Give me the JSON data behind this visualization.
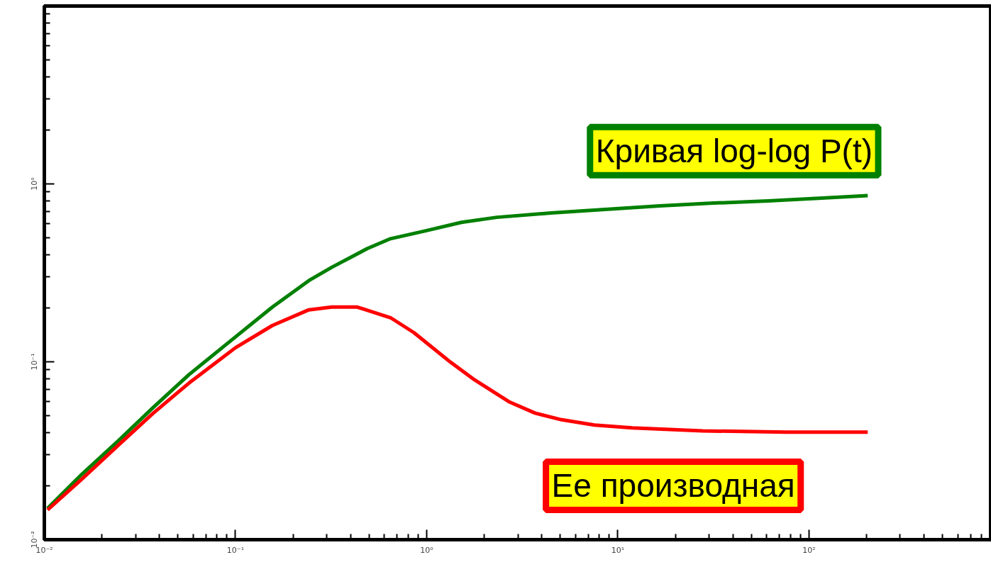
{
  "chart_data": {
    "type": "line",
    "log": "xy",
    "grid": false,
    "legend": false,
    "marker": "none",
    "line_style": "solid",
    "xlim": [
      0.01,
      900
    ],
    "ylim": [
      0.01,
      10
    ],
    "xticks": [
      {
        "value": 0.01,
        "label": "10⁻²"
      },
      {
        "value": 0.02,
        "label": null
      },
      {
        "value": 0.03,
        "label": null
      },
      {
        "value": 0.04,
        "label": null
      },
      {
        "value": 0.05,
        "label": null
      },
      {
        "value": 0.06,
        "label": null
      },
      {
        "value": 0.07,
        "label": null
      },
      {
        "value": 0.08,
        "label": null
      },
      {
        "value": 0.09,
        "label": null
      },
      {
        "value": 0.1,
        "label": "10⁻¹"
      },
      {
        "value": 0.2,
        "label": null
      },
      {
        "value": 0.3,
        "label": null
      },
      {
        "value": 0.4,
        "label": null
      },
      {
        "value": 0.5,
        "label": null
      },
      {
        "value": 0.6,
        "label": null
      },
      {
        "value": 0.7,
        "label": null
      },
      {
        "value": 0.8,
        "label": null
      },
      {
        "value": 0.9,
        "label": null
      },
      {
        "value": 1,
        "label": "10⁰"
      },
      {
        "value": 2,
        "label": null
      },
      {
        "value": 3,
        "label": null
      },
      {
        "value": 4,
        "label": null
      },
      {
        "value": 5,
        "label": null
      },
      {
        "value": 6,
        "label": null
      },
      {
        "value": 7,
        "label": null
      },
      {
        "value": 8,
        "label": null
      },
      {
        "value": 9,
        "label": null
      },
      {
        "value": 10,
        "label": "10¹"
      },
      {
        "value": 20,
        "label": null
      },
      {
        "value": 30,
        "label": null
      },
      {
        "value": 40,
        "label": null
      },
      {
        "value": 50,
        "label": null
      },
      {
        "value": 60,
        "label": null
      },
      {
        "value": 70,
        "label": null
      },
      {
        "value": 80,
        "label": null
      },
      {
        "value": 90,
        "label": null
      },
      {
        "value": 100,
        "label": "10²"
      },
      {
        "value": 200,
        "label": null
      },
      {
        "value": 300,
        "label": null
      },
      {
        "value": 400,
        "label": null
      },
      {
        "value": 500,
        "label": null
      },
      {
        "value": 600,
        "label": null
      },
      {
        "value": 700,
        "label": null
      },
      {
        "value": 800,
        "label": null
      }
    ],
    "yticks": [
      {
        "value": 0.01,
        "label": "10⁻²"
      },
      {
        "value": 0.02,
        "label": null
      },
      {
        "value": 0.03,
        "label": null
      },
      {
        "value": 0.04,
        "label": null
      },
      {
        "value": 0.05,
        "label": null
      },
      {
        "value": 0.06,
        "label": null
      },
      {
        "value": 0.07,
        "label": null
      },
      {
        "value": 0.08,
        "label": null
      },
      {
        "value": 0.09,
        "label": null
      },
      {
        "value": 0.1,
        "label": "10⁻¹"
      },
      {
        "value": 0.2,
        "label": null
      },
      {
        "value": 0.3,
        "label": null
      },
      {
        "value": 0.4,
        "label": null
      },
      {
        "value": 0.5,
        "label": null
      },
      {
        "value": 0.6,
        "label": null
      },
      {
        "value": 0.7,
        "label": null
      },
      {
        "value": 0.8,
        "label": null
      },
      {
        "value": 0.9,
        "label": null
      },
      {
        "value": 1,
        "label": "10⁰"
      },
      {
        "value": 2,
        "label": null
      },
      {
        "value": 3,
        "label": null
      },
      {
        "value": 4,
        "label": null
      },
      {
        "value": 5,
        "label": null
      },
      {
        "value": 6,
        "label": null
      },
      {
        "value": 7,
        "label": null
      },
      {
        "value": 8,
        "label": null
      },
      {
        "value": 9,
        "label": null
      }
    ],
    "series": [
      {
        "name": "Кривая log-log P(t)",
        "color": "#008000",
        "x": [
          0.0104,
          0.0157,
          0.0244,
          0.0369,
          0.0571,
          0.1,
          0.156,
          0.242,
          0.319,
          0.489,
          0.647,
          0.99,
          1.52,
          2.33,
          4.47,
          8.58,
          16.6,
          31.6,
          61,
          117,
          203
        ],
        "values": [
          0.015,
          0.0233,
          0.036,
          0.055,
          0.0847,
          0.138,
          0.203,
          0.286,
          0.34,
          0.433,
          0.492,
          0.545,
          0.608,
          0.649,
          0.686,
          0.718,
          0.752,
          0.78,
          0.802,
          0.832,
          0.859
        ]
      },
      {
        "name": "Ее производная",
        "color": "#ff0000",
        "x": [
          0.0104,
          0.0157,
          0.0244,
          0.0369,
          0.0571,
          0.1,
          0.156,
          0.242,
          0.319,
          0.434,
          0.647,
          0.857,
          1.31,
          1.75,
          2.69,
          3.69,
          5.09,
          7.55,
          11.9,
          27.8,
          76,
          203
        ],
        "values": [
          0.0147,
          0.0219,
          0.034,
          0.0511,
          0.0759,
          0.12,
          0.16,
          0.196,
          0.203,
          0.203,
          0.177,
          0.146,
          0.101,
          0.0802,
          0.0597,
          0.0515,
          0.0472,
          0.0441,
          0.0425,
          0.0409,
          0.0402,
          0.0402
        ]
      }
    ]
  }
}
